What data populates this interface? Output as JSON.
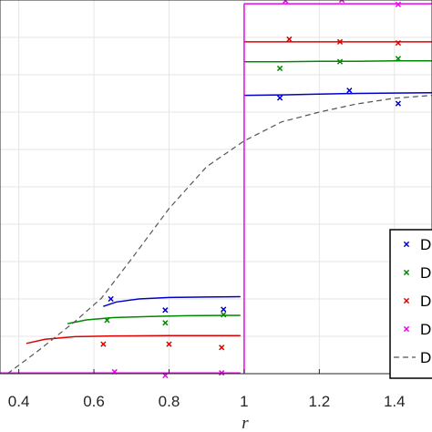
{
  "chart_data": {
    "type": "line",
    "xlabel": "r",
    "ylabel": "",
    "title": "",
    "xlim": [
      0.35,
      1.5
    ],
    "ylim": [
      0,
      1
    ],
    "xticks": [
      "0.4",
      "0.6",
      "0.8",
      "1",
      "1.2",
      "1.4"
    ],
    "xtick_values": [
      0.4,
      0.6,
      0.8,
      1.0,
      1.2,
      1.4
    ],
    "ytick_values": [
      0.1,
      0.2,
      0.3,
      0.4,
      0.5,
      0.6,
      0.7,
      0.8,
      0.9
    ],
    "grid": true,
    "legend_position": "bottom-right",
    "series": [
      {
        "name": "D",
        "color": "#0000cc",
        "marker": "x",
        "points": [
          [
            0.645,
            0.2
          ],
          [
            0.79,
            0.17
          ],
          [
            0.945,
            0.172
          ],
          [
            1.095,
            0.738
          ],
          [
            1.28,
            0.758
          ],
          [
            1.41,
            0.723
          ]
        ],
        "curve_inner": [
          [
            0.625,
            0.18
          ],
          [
            0.66,
            0.192
          ],
          [
            0.72,
            0.2
          ],
          [
            0.8,
            0.204
          ],
          [
            0.9,
            0.205
          ],
          [
            0.99,
            0.206
          ]
        ],
        "curve_outer": [
          [
            1.0,
            0.745
          ],
          [
            1.1,
            0.746
          ],
          [
            1.2,
            0.748
          ],
          [
            1.3,
            0.75
          ],
          [
            1.4,
            0.751
          ],
          [
            1.5,
            0.752
          ]
        ]
      },
      {
        "name": "D",
        "color": "#008800",
        "marker": "x",
        "points": [
          [
            0.635,
            0.143
          ],
          [
            0.79,
            0.136
          ],
          [
            0.945,
            0.158
          ],
          [
            1.095,
            0.817
          ],
          [
            1.255,
            0.835
          ],
          [
            1.41,
            0.843
          ]
        ],
        "curve_inner": [
          [
            0.53,
            0.134
          ],
          [
            0.58,
            0.144
          ],
          [
            0.65,
            0.15
          ],
          [
            0.75,
            0.153
          ],
          [
            0.85,
            0.155
          ],
          [
            0.99,
            0.156
          ]
        ],
        "curve_outer": [
          [
            1.0,
            0.835
          ],
          [
            1.1,
            0.835
          ],
          [
            1.2,
            0.836
          ],
          [
            1.3,
            0.836
          ],
          [
            1.4,
            0.837
          ],
          [
            1.5,
            0.837
          ]
        ]
      },
      {
        "name": "D",
        "color": "#dd0000",
        "marker": "x",
        "points": [
          [
            0.625,
            0.079
          ],
          [
            0.8,
            0.079
          ],
          [
            0.94,
            0.07
          ],
          [
            1.12,
            0.895
          ],
          [
            1.255,
            0.888
          ],
          [
            1.41,
            0.885
          ]
        ],
        "curve_inner": [
          [
            0.42,
            0.081
          ],
          [
            0.47,
            0.092
          ],
          [
            0.55,
            0.099
          ],
          [
            0.65,
            0.101
          ],
          [
            0.8,
            0.102
          ],
          [
            0.99,
            0.102
          ]
        ],
        "curve_outer": [
          [
            1.0,
            0.888
          ],
          [
            1.1,
            0.888
          ],
          [
            1.2,
            0.888
          ],
          [
            1.3,
            0.888
          ],
          [
            1.4,
            0.888
          ],
          [
            1.5,
            0.888
          ]
        ]
      },
      {
        "name": "D",
        "color": "#ee00ee",
        "marker": "x",
        "points": [
          [
            0.655,
            0.005
          ],
          [
            0.79,
            -0.005
          ],
          [
            0.94,
            0.002
          ],
          [
            1.11,
            0.998
          ],
          [
            1.26,
            1.0
          ],
          [
            1.41,
            0.988
          ]
        ],
        "curve_inner": [
          [
            0.35,
            0.002
          ],
          [
            0.99,
            0.002
          ]
        ],
        "curve_outer": [
          [
            1.0,
            0.99
          ],
          [
            1.5,
            0.99
          ]
        ]
      },
      {
        "name": "D",
        "color": "#555555",
        "dashed": true,
        "marker": "none",
        "curve": [
          [
            0.37,
            0.0
          ],
          [
            0.45,
            0.06
          ],
          [
            0.55,
            0.14
          ],
          [
            0.62,
            0.202
          ],
          [
            0.7,
            0.307
          ],
          [
            0.8,
            0.442
          ],
          [
            0.9,
            0.554
          ],
          [
            1.0,
            0.623
          ],
          [
            1.1,
            0.674
          ],
          [
            1.2,
            0.7
          ],
          [
            1.3,
            0.722
          ],
          [
            1.4,
            0.737
          ],
          [
            1.5,
            0.745
          ]
        ]
      }
    ],
    "jump_line": {
      "color": "#ee00ee",
      "x": 1.0,
      "y_from": 0.002,
      "y_to": 0.99
    }
  }
}
